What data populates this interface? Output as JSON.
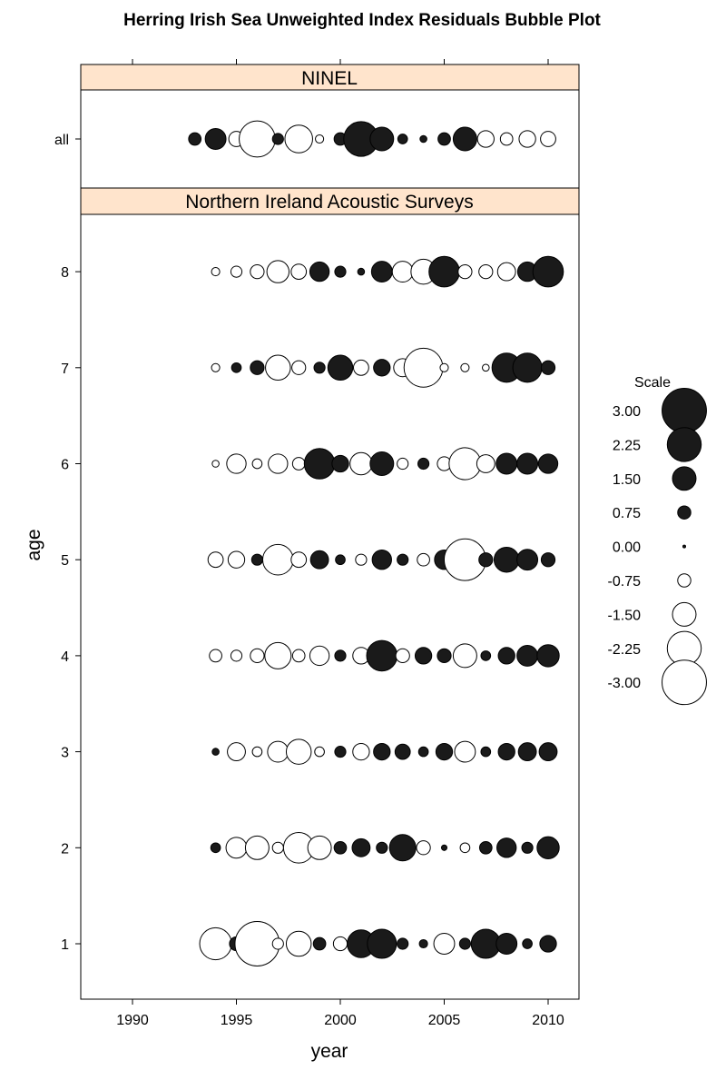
{
  "chart_data": {
    "type": "scatter",
    "subtype": "bubble",
    "title": "Herring Irish Sea Unweighted Index Residuals Bubble Plot",
    "xlabel": "year",
    "ylabel": "age",
    "xlim": [
      1987.7,
      2011.5
    ],
    "x_ticks": [
      "1990",
      "1995",
      "2000",
      "2005",
      "2010"
    ],
    "colors": {
      "positive": "#1a1a1a",
      "negative": "#ffffff",
      "outline": "#000000",
      "strip": "#ffe4cc"
    },
    "legend": {
      "title": "Scale",
      "placement": "right",
      "values": [
        3.0,
        2.25,
        1.5,
        0.75,
        0.0,
        -0.75,
        -1.5,
        -2.25,
        -3.0
      ],
      "labels": [
        "3.00",
        "2.25",
        "1.50",
        "0.75",
        "0.00",
        "-0.75",
        "-1.50",
        "-2.25",
        "-3.00"
      ]
    },
    "panels": [
      {
        "name": "NINEL",
        "y_categories": [
          "all"
        ],
        "points": [
          {
            "x": 1993,
            "y": "all",
            "v": 0.7
          },
          {
            "x": 1994,
            "y": "all",
            "v": 1.3
          },
          {
            "x": 1995,
            "y": "all",
            "v": -0.9
          },
          {
            "x": 1996,
            "y": "all",
            "v": -2.4
          },
          {
            "x": 1997,
            "y": "all",
            "v": 0.6
          },
          {
            "x": 1998,
            "y": "all",
            "v": -1.8
          },
          {
            "x": 1999,
            "y": "all",
            "v": -0.4
          },
          {
            "x": 2000,
            "y": "all",
            "v": 0.7
          },
          {
            "x": 2001,
            "y": "all",
            "v": 2.3
          },
          {
            "x": 2002,
            "y": "all",
            "v": 1.5
          },
          {
            "x": 2003,
            "y": "all",
            "v": 0.5
          },
          {
            "x": 2004,
            "y": "all",
            "v": 0.3
          },
          {
            "x": 2005,
            "y": "all",
            "v": 0.7
          },
          {
            "x": 2006,
            "y": "all",
            "v": 1.5
          },
          {
            "x": 2007,
            "y": "all",
            "v": -1.0
          },
          {
            "x": 2008,
            "y": "all",
            "v": -0.7
          },
          {
            "x": 2009,
            "y": "all",
            "v": -1.0
          },
          {
            "x": 2010,
            "y": "all",
            "v": -0.9
          }
        ]
      },
      {
        "name": "Northern Ireland Acoustic Surveys",
        "y_categories": [
          "1",
          "2",
          "3",
          "4",
          "5",
          "6",
          "7",
          "8"
        ],
        "points": [
          {
            "x": 1994,
            "y": "8",
            "v": -0.4
          },
          {
            "x": 1995,
            "y": "8",
            "v": -0.6
          },
          {
            "x": 1996,
            "y": "8",
            "v": -0.8
          },
          {
            "x": 1997,
            "y": "8",
            "v": -1.4
          },
          {
            "x": 1998,
            "y": "8",
            "v": -0.9
          },
          {
            "x": 1999,
            "y": "8",
            "v": 1.2
          },
          {
            "x": 2000,
            "y": "8",
            "v": 0.6
          },
          {
            "x": 2001,
            "y": "8",
            "v": 0.3
          },
          {
            "x": 2002,
            "y": "8",
            "v": 1.3
          },
          {
            "x": 2003,
            "y": "8",
            "v": -1.3
          },
          {
            "x": 2004,
            "y": "8",
            "v": -1.6
          },
          {
            "x": 2005,
            "y": "8",
            "v": 2.0
          },
          {
            "x": 2006,
            "y": "8",
            "v": -0.8
          },
          {
            "x": 2007,
            "y": "8",
            "v": -0.8
          },
          {
            "x": 2008,
            "y": "8",
            "v": -1.1
          },
          {
            "x": 2009,
            "y": "8",
            "v": 1.2
          },
          {
            "x": 2010,
            "y": "8",
            "v": 2.0
          },
          {
            "x": 1994,
            "y": "7",
            "v": -0.4
          },
          {
            "x": 1995,
            "y": "7",
            "v": 0.5
          },
          {
            "x": 1996,
            "y": "7",
            "v": 0.8
          },
          {
            "x": 1997,
            "y": "7",
            "v": -1.6
          },
          {
            "x": 1998,
            "y": "7",
            "v": -0.8
          },
          {
            "x": 1999,
            "y": "7",
            "v": 0.6
          },
          {
            "x": 2000,
            "y": "7",
            "v": 1.6
          },
          {
            "x": 2001,
            "y": "7",
            "v": -0.9
          },
          {
            "x": 2002,
            "y": "7",
            "v": 1.0
          },
          {
            "x": 2003,
            "y": "7",
            "v": -1.1
          },
          {
            "x": 2004,
            "y": "7",
            "v": -2.6
          },
          {
            "x": 2005,
            "y": "7",
            "v": -0.4
          },
          {
            "x": 2006,
            "y": "7",
            "v": -0.4
          },
          {
            "x": 2007,
            "y": "7",
            "v": -0.3
          },
          {
            "x": 2008,
            "y": "7",
            "v": 1.9
          },
          {
            "x": 2009,
            "y": "7",
            "v": 1.9
          },
          {
            "x": 2010,
            "y": "7",
            "v": 0.8
          },
          {
            "x": 1994,
            "y": "6",
            "v": -0.3
          },
          {
            "x": 1995,
            "y": "6",
            "v": -1.2
          },
          {
            "x": 1996,
            "y": "6",
            "v": -0.5
          },
          {
            "x": 1997,
            "y": "6",
            "v": -1.2
          },
          {
            "x": 1998,
            "y": "6",
            "v": -0.7
          },
          {
            "x": 1999,
            "y": "6",
            "v": 2.0
          },
          {
            "x": 2000,
            "y": "6",
            "v": 1.0
          },
          {
            "x": 2001,
            "y": "6",
            "v": -1.4
          },
          {
            "x": 2002,
            "y": "6",
            "v": 1.5
          },
          {
            "x": 2003,
            "y": "6",
            "v": -0.6
          },
          {
            "x": 2004,
            "y": "6",
            "v": 0.6
          },
          {
            "x": 2005,
            "y": "6",
            "v": -0.8
          },
          {
            "x": 2006,
            "y": "6",
            "v": -2.1
          },
          {
            "x": 2007,
            "y": "6",
            "v": -1.1
          },
          {
            "x": 2008,
            "y": "6",
            "v": 1.3
          },
          {
            "x": 2009,
            "y": "6",
            "v": 1.3
          },
          {
            "x": 2010,
            "y": "6",
            "v": 1.2
          },
          {
            "x": 1994,
            "y": "5",
            "v": -0.9
          },
          {
            "x": 1995,
            "y": "5",
            "v": -1.0
          },
          {
            "x": 1996,
            "y": "5",
            "v": 0.6
          },
          {
            "x": 1997,
            "y": "5",
            "v": -2.0
          },
          {
            "x": 1998,
            "y": "5",
            "v": -0.9
          },
          {
            "x": 1999,
            "y": "5",
            "v": 1.1
          },
          {
            "x": 2000,
            "y": "5",
            "v": 0.5
          },
          {
            "x": 2001,
            "y": "5",
            "v": -0.6
          },
          {
            "x": 2002,
            "y": "5",
            "v": 1.2
          },
          {
            "x": 2003,
            "y": "5",
            "v": 0.6
          },
          {
            "x": 2004,
            "y": "5",
            "v": -0.7
          },
          {
            "x": 2005,
            "y": "5",
            "v": 1.2
          },
          {
            "x": 2006,
            "y": "5",
            "v": -2.8
          },
          {
            "x": 2007,
            "y": "5",
            "v": 0.8
          },
          {
            "x": 2008,
            "y": "5",
            "v": 1.6
          },
          {
            "x": 2009,
            "y": "5",
            "v": 1.3
          },
          {
            "x": 2010,
            "y": "5",
            "v": 0.8
          },
          {
            "x": 1994,
            "y": "4",
            "v": -0.7
          },
          {
            "x": 1995,
            "y": "4",
            "v": -0.6
          },
          {
            "x": 1996,
            "y": "4",
            "v": -0.8
          },
          {
            "x": 1997,
            "y": "4",
            "v": -1.7
          },
          {
            "x": 1998,
            "y": "4",
            "v": -0.7
          },
          {
            "x": 1999,
            "y": "4",
            "v": -1.2
          },
          {
            "x": 2000,
            "y": "4",
            "v": 0.6
          },
          {
            "x": 2001,
            "y": "4",
            "v": -1.0
          },
          {
            "x": 2002,
            "y": "4",
            "v": 2.0
          },
          {
            "x": 2003,
            "y": "4",
            "v": -0.8
          },
          {
            "x": 2004,
            "y": "4",
            "v": 1.0
          },
          {
            "x": 2005,
            "y": "4",
            "v": 0.8
          },
          {
            "x": 2006,
            "y": "4",
            "v": -1.5
          },
          {
            "x": 2007,
            "y": "4",
            "v": 0.5
          },
          {
            "x": 2008,
            "y": "4",
            "v": 1.0
          },
          {
            "x": 2009,
            "y": "4",
            "v": 1.3
          },
          {
            "x": 2010,
            "y": "4",
            "v": 1.4
          },
          {
            "x": 1994,
            "y": "3",
            "v": 0.3
          },
          {
            "x": 1995,
            "y": "3",
            "v": -1.1
          },
          {
            "x": 1996,
            "y": "3",
            "v": -0.5
          },
          {
            "x": 1997,
            "y": "3",
            "v": -1.3
          },
          {
            "x": 1998,
            "y": "3",
            "v": -1.6
          },
          {
            "x": 1999,
            "y": "3",
            "v": -0.5
          },
          {
            "x": 2000,
            "y": "3",
            "v": 0.6
          },
          {
            "x": 2001,
            "y": "3",
            "v": -1.0
          },
          {
            "x": 2002,
            "y": "3",
            "v": 1.0
          },
          {
            "x": 2003,
            "y": "3",
            "v": 0.9
          },
          {
            "x": 2004,
            "y": "3",
            "v": 0.5
          },
          {
            "x": 2005,
            "y": "3",
            "v": 1.0
          },
          {
            "x": 2006,
            "y": "3",
            "v": -1.3
          },
          {
            "x": 2007,
            "y": "3",
            "v": 0.5
          },
          {
            "x": 2008,
            "y": "3",
            "v": 1.0
          },
          {
            "x": 2009,
            "y": "3",
            "v": 1.1
          },
          {
            "x": 2010,
            "y": "3",
            "v": 1.1
          },
          {
            "x": 1994,
            "y": "2",
            "v": 0.5
          },
          {
            "x": 1995,
            "y": "2",
            "v": -1.3
          },
          {
            "x": 1996,
            "y": "2",
            "v": -1.5
          },
          {
            "x": 1997,
            "y": "2",
            "v": -0.6
          },
          {
            "x": 1998,
            "y": "2",
            "v": -2.0
          },
          {
            "x": 1999,
            "y": "2",
            "v": -1.5
          },
          {
            "x": 2000,
            "y": "2",
            "v": 0.7
          },
          {
            "x": 2001,
            "y": "2",
            "v": 1.1
          },
          {
            "x": 2002,
            "y": "2",
            "v": 0.6
          },
          {
            "x": 2003,
            "y": "2",
            "v": 1.7
          },
          {
            "x": 2004,
            "y": "2",
            "v": -0.8
          },
          {
            "x": 2005,
            "y": "2",
            "v": 0.2
          },
          {
            "x": 2006,
            "y": "2",
            "v": -0.5
          },
          {
            "x": 2007,
            "y": "2",
            "v": 0.7
          },
          {
            "x": 2008,
            "y": "2",
            "v": 1.2
          },
          {
            "x": 2009,
            "y": "2",
            "v": 0.6
          },
          {
            "x": 2010,
            "y": "2",
            "v": 1.4
          },
          {
            "x": 1994,
            "y": "1",
            "v": -2.1
          },
          {
            "x": 1995,
            "y": "1",
            "v": 0.8
          },
          {
            "x": 1996,
            "y": "1",
            "v": -3.0
          },
          {
            "x": 1997,
            "y": "1",
            "v": -0.6
          },
          {
            "x": 1998,
            "y": "1",
            "v": -1.6
          },
          {
            "x": 1999,
            "y": "1",
            "v": 0.7
          },
          {
            "x": 2000,
            "y": "1",
            "v": -0.8
          },
          {
            "x": 2001,
            "y": "1",
            "v": 1.8
          },
          {
            "x": 2002,
            "y": "1",
            "v": 1.9
          },
          {
            "x": 2003,
            "y": "1",
            "v": 0.6
          },
          {
            "x": 2004,
            "y": "1",
            "v": 0.4
          },
          {
            "x": 2005,
            "y": "1",
            "v": -1.3
          },
          {
            "x": 2006,
            "y": "1",
            "v": 0.6
          },
          {
            "x": 2007,
            "y": "1",
            "v": 1.9
          },
          {
            "x": 2008,
            "y": "1",
            "v": 1.3
          },
          {
            "x": 2009,
            "y": "1",
            "v": 0.5
          },
          {
            "x": 2010,
            "y": "1",
            "v": 1.0
          }
        ]
      }
    ]
  }
}
